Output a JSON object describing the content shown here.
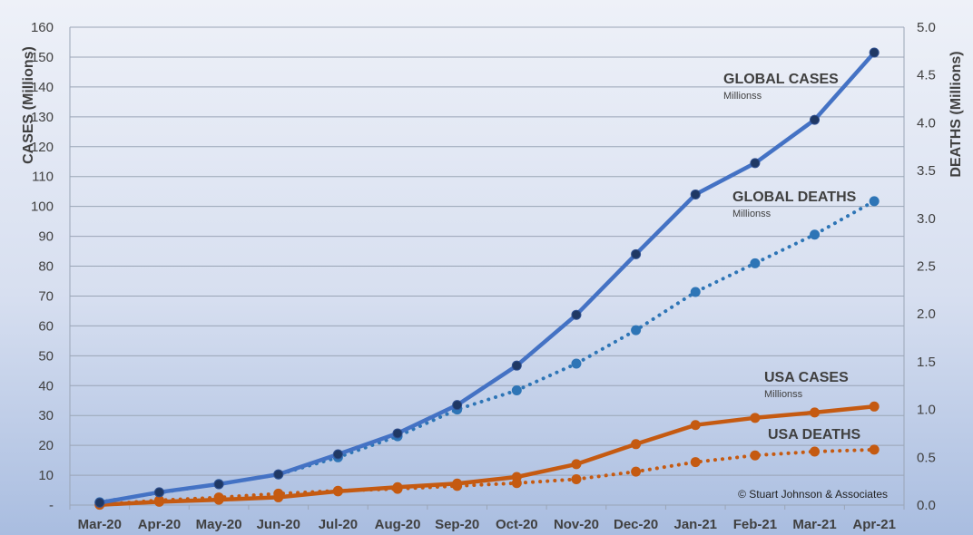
{
  "chart_data": {
    "type": "line",
    "categories": [
      "Mar-20",
      "Apr-20",
      "May-20",
      "Jun-20",
      "Jul-20",
      "Aug-20",
      "Sep-20",
      "Oct-20",
      "Nov-20",
      "Dec-20",
      "Jan-21",
      "Feb-21",
      "Mar-21",
      "Apr-21"
    ],
    "ylabel": "CASES (Millions)",
    "ylabel_right": "DEATHS (Millions)",
    "ylim": [
      0,
      160
    ],
    "ylim_right": [
      0,
      5
    ],
    "y_ticks": [
      "-",
      "10",
      "20",
      "30",
      "40",
      "50",
      "60",
      "70",
      "80",
      "90",
      "100",
      "110",
      "120",
      "130",
      "140",
      "150",
      "160"
    ],
    "y_ticks_right": [
      "0.0",
      "0.5",
      "1.0",
      "1.5",
      "2.0",
      "2.5",
      "3.0",
      "3.5",
      "4.0",
      "4.5",
      "5.0"
    ],
    "grid": true,
    "series": [
      {
        "name": "GLOBAL CASES",
        "sub": "Millionss",
        "axis": "left",
        "color": "#4472c4",
        "style": "solid",
        "values": [
          0.8,
          4.3,
          7.0,
          10.3,
          17.0,
          24.0,
          33.5,
          46.7,
          63.7,
          84.0,
          104.0,
          114.5,
          129.0,
          151.5
        ]
      },
      {
        "name": "GLOBAL DEATHS",
        "sub": "Millionss",
        "axis": "right",
        "color": "#2e75b6",
        "style": "dotted",
        "values": [
          0.03,
          0.13,
          0.22,
          0.32,
          0.5,
          0.72,
          1.0,
          1.2,
          1.48,
          1.83,
          2.23,
          2.53,
          2.83,
          3.18
        ]
      },
      {
        "name": "USA CASES",
        "sub": "Millionss",
        "axis": "left",
        "color": "#c55a11",
        "style": "solid",
        "values": [
          0.1,
          1.1,
          1.8,
          2.6,
          4.6,
          6.0,
          7.2,
          9.4,
          13.7,
          20.4,
          26.8,
          29.2,
          31.0,
          33.0
        ]
      },
      {
        "name": "USA DEATHS",
        "sub": "",
        "axis": "right",
        "color": "#c55a11",
        "style": "dotted",
        "values": [
          0.005,
          0.05,
          0.08,
          0.12,
          0.15,
          0.17,
          0.2,
          0.23,
          0.27,
          0.35,
          0.45,
          0.52,
          0.56,
          0.58
        ]
      }
    ],
    "annotations": {
      "credit": "© Stuart Johnson & Associates"
    }
  },
  "colors": {
    "background_top": "#eef1f8",
    "background_bottom": "#a9bde0",
    "gridline": "#9aa5b6"
  }
}
